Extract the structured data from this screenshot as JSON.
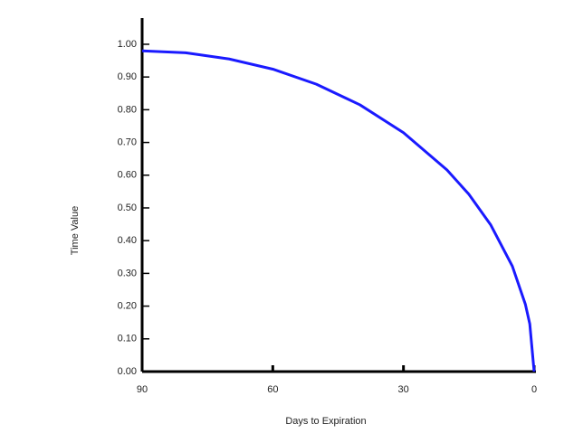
{
  "chart_data": {
    "type": "line",
    "x_label": "Days to Expiration",
    "y_label": "Time Value",
    "x": [
      90,
      80,
      70,
      60,
      50,
      40,
      30,
      20,
      15,
      10,
      5,
      2,
      1,
      0
    ],
    "series": [
      {
        "color": "#1a1aff",
        "values": [
          0.98,
          0.974,
          0.955,
          0.924,
          0.878,
          0.815,
          0.73,
          0.616,
          0.542,
          0.449,
          0.322,
          0.205,
          0.146,
          0
        ]
      }
    ],
    "xlim": [
      90,
      0
    ],
    "ylim": [
      0,
      1.08
    ],
    "xticks": [
      90,
      60,
      30,
      0
    ],
    "yticks": [
      {
        "value": 0,
        "label": "0.00"
      },
      {
        "value": 0.1,
        "label": "0.10"
      },
      {
        "value": 0.2,
        "label": "0.20"
      },
      {
        "value": 0.3,
        "label": "0.30"
      },
      {
        "value": 0.4,
        "label": "0.40"
      },
      {
        "value": 0.5,
        "label": "0.50"
      },
      {
        "value": 0.6,
        "label": "0.60"
      },
      {
        "value": 0.7,
        "label": "0.70"
      },
      {
        "value": 0.8,
        "label": "0.80"
      },
      {
        "value": 0.9,
        "label": "0.90"
      },
      {
        "value": 1,
        "label": "1.00"
      }
    ]
  }
}
